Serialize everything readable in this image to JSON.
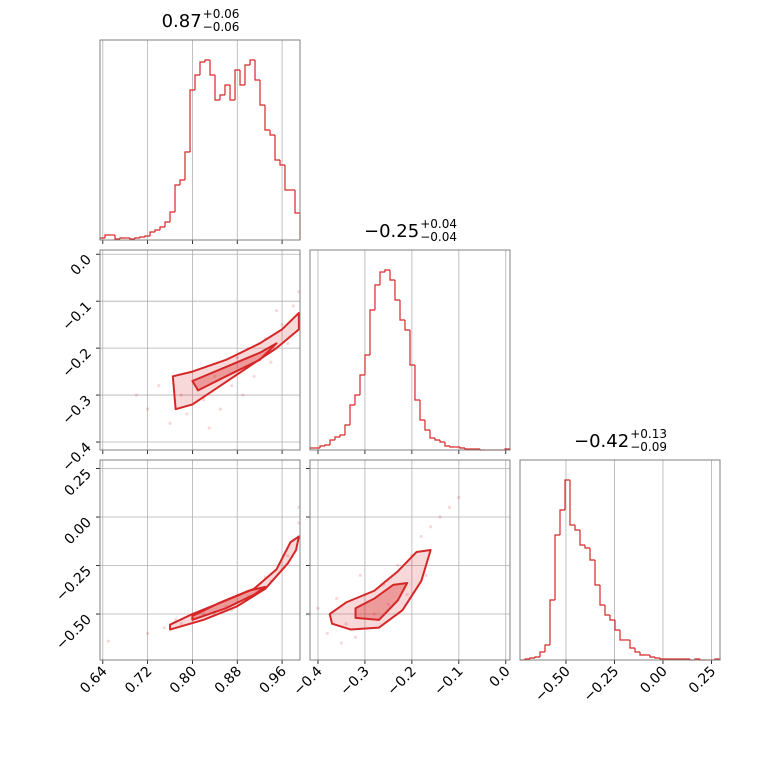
{
  "chart_data": [
    {
      "type": "histogram",
      "title": {
        "value": "0.87",
        "plus": "+0.06",
        "minus": "−0.06"
      },
      "color": "#d62728",
      "bins": [
        0.635,
        0.6439,
        0.6529,
        0.6618,
        0.6707,
        0.6796,
        0.6886,
        0.6975,
        0.7064,
        0.7153,
        0.7243,
        0.7332,
        0.7421,
        0.751,
        0.76,
        0.7689,
        0.7778,
        0.7867,
        0.7957,
        0.8046,
        0.8135,
        0.8224,
        0.8314,
        0.8403,
        0.8492,
        0.8581,
        0.8671,
        0.876,
        0.8849,
        0.8938,
        0.9028,
        0.9117,
        0.9206,
        0.9295,
        0.9385,
        0.9474,
        0.9563,
        0.9652,
        0.9742,
        0.9831,
        0.992
      ],
      "counts": [
        2,
        5,
        5,
        1,
        2,
        2,
        1,
        2,
        3,
        4,
        8,
        10,
        13,
        18,
        28,
        55,
        60,
        88,
        150,
        165,
        178,
        180,
        165,
        140,
        145,
        155,
        140,
        170,
        155,
        175,
        180,
        160,
        135,
        110,
        105,
        80,
        75,
        50,
        50,
        27
      ],
      "xlim": [
        0.635,
        0.992
      ],
      "ylim": [
        0,
        200
      ],
      "xticks": [
        0.64,
        0.72,
        0.8,
        0.88,
        0.96
      ],
      "grid": true
    },
    {
      "type": "contour",
      "color": "#d62728",
      "x": [
        0.7,
        0.74,
        0.76,
        0.78,
        0.79,
        0.82,
        0.84,
        0.85,
        0.87,
        0.88,
        0.9,
        0.91,
        0.93,
        0.94,
        0.96,
        0.97,
        0.98,
        0.99,
        0.83,
        0.89,
        0.72,
        0.95
      ],
      "y": [
        -0.3,
        -0.28,
        -0.36,
        -0.3,
        -0.34,
        -0.31,
        -0.26,
        -0.33,
        -0.28,
        -0.22,
        -0.2,
        -0.26,
        -0.18,
        -0.23,
        -0.15,
        -0.19,
        -0.11,
        -0.08,
        -0.37,
        -0.3,
        -0.33,
        -0.12
      ],
      "contours": [
        {
          "x": [
            0.765,
            0.8,
            0.86,
            0.92,
            0.96,
            0.99,
            0.99,
            0.95,
            0.9,
            0.85,
            0.8,
            0.77
          ],
          "y": [
            -0.26,
            -0.25,
            -0.225,
            -0.19,
            -0.16,
            -0.125,
            -0.16,
            -0.2,
            -0.24,
            -0.28,
            -0.32,
            -0.33
          ]
        },
        {
          "x": [
            0.8,
            0.86,
            0.92,
            0.95,
            0.92,
            0.86,
            0.81
          ],
          "y": [
            -0.27,
            -0.24,
            -0.21,
            -0.19,
            -0.225,
            -0.26,
            -0.29
          ]
        }
      ],
      "xlim": [
        0.635,
        0.992
      ],
      "ylim": [
        -0.417,
        0.009
      ],
      "xticks": [
        0.64,
        0.72,
        0.8,
        0.88,
        0.96
      ],
      "yticks": [
        {
          "value": 0,
          "label": "0.0"
        },
        {
          "value": -0.1,
          "label": "−0.1"
        },
        {
          "value": -0.2,
          "label": "−0.2"
        },
        {
          "value": -0.3,
          "label": "−0.3"
        },
        {
          "value": -0.4,
          "label": "−0.4"
        }
      ],
      "grid": true
    },
    {
      "type": "histogram",
      "title": {
        "value": "−0.25",
        "plus": "+0.04",
        "minus": "−0.04"
      },
      "color": "#d62728",
      "bins": [
        -0.417,
        -0.4064,
        -0.3957,
        -0.3851,
        -0.3744,
        -0.3638,
        -0.3531,
        -0.3425,
        -0.3318,
        -0.3212,
        -0.3105,
        -0.2999,
        -0.2892,
        -0.2786,
        -0.2679,
        -0.2573,
        -0.2466,
        -0.236,
        -0.2253,
        -0.2147,
        -0.204,
        -0.1934,
        -0.1827,
        -0.1721,
        -0.1614,
        -0.1508,
        -0.1401,
        -0.1295,
        -0.1188,
        -0.1082,
        -0.0975,
        -0.0869,
        -0.0762,
        -0.0656,
        -0.0549,
        -0.0443,
        -0.0336,
        -0.023,
        -0.0123,
        -0.0017,
        0.009
      ],
      "counts": [
        2,
        2,
        4,
        5,
        10,
        13,
        15,
        25,
        45,
        55,
        75,
        95,
        140,
        165,
        178,
        180,
        170,
        150,
        130,
        120,
        85,
        50,
        30,
        20,
        12,
        10,
        8,
        4,
        3,
        3,
        2,
        1,
        1,
        1,
        0,
        0,
        0,
        0,
        0,
        1
      ],
      "xlim": [
        -0.417,
        0.009
      ],
      "ylim": [
        0,
        200
      ],
      "xticks": [
        -0.4,
        -0.3,
        -0.2,
        -0.1,
        0
      ],
      "grid": true
    },
    {
      "type": "contour",
      "color": "#d62728",
      "x": [
        0.72,
        0.75,
        0.78,
        0.8,
        0.82,
        0.84,
        0.86,
        0.88,
        0.9,
        0.92,
        0.94,
        0.96,
        0.97,
        0.98,
        0.99,
        0.99,
        0.65,
        0.77,
        0.87,
        0.93
      ],
      "y": [
        -0.6,
        -0.57,
        -0.55,
        -0.52,
        -0.5,
        -0.49,
        -0.46,
        -0.44,
        -0.41,
        -0.38,
        -0.33,
        -0.27,
        -0.2,
        -0.12,
        -0.03,
        0.05,
        -0.64,
        -0.53,
        -0.48,
        -0.31
      ],
      "contours": [
        {
          "x": [
            0.76,
            0.82,
            0.88,
            0.93,
            0.97,
            0.985,
            0.99,
            0.975,
            0.95,
            0.91,
            0.86,
            0.8,
            0.76
          ],
          "y": [
            -0.58,
            -0.53,
            -0.46,
            -0.37,
            -0.24,
            -0.17,
            -0.1,
            -0.13,
            -0.27,
            -0.37,
            -0.43,
            -0.5,
            -0.555
          ]
        },
        {
          "x": [
            0.8,
            0.86,
            0.91,
            0.93,
            0.9,
            0.85,
            0.8
          ],
          "y": [
            -0.53,
            -0.47,
            -0.4,
            -0.36,
            -0.38,
            -0.44,
            -0.51
          ]
        }
      ],
      "xlim": [
        0.635,
        0.992
      ],
      "ylim": [
        -0.737,
        0.294
      ],
      "xticks": [
        {
          "value": 0.64,
          "label": "0.64"
        },
        {
          "value": 0.72,
          "label": "0.72"
        },
        {
          "value": 0.8,
          "label": "0.80"
        },
        {
          "value": 0.88,
          "label": "0.88"
        },
        {
          "value": 0.96,
          "label": "0.96"
        }
      ],
      "yticks": [
        {
          "value": 0.25,
          "label": "0.25"
        },
        {
          "value": 0,
          "label": "0.00"
        },
        {
          "value": -0.25,
          "label": "−0.25"
        },
        {
          "value": -0.5,
          "label": "−0.50"
        }
      ],
      "grid": true
    },
    {
      "type": "contour",
      "color": "#d62728",
      "x": [
        -0.4,
        -0.38,
        -0.36,
        -0.34,
        -0.32,
        -0.3,
        -0.28,
        -0.26,
        -0.25,
        -0.23,
        -0.21,
        -0.2,
        -0.18,
        -0.16,
        -0.14,
        -0.12,
        -0.1,
        -0.31,
        -0.35,
        -0.17
      ],
      "y": [
        -0.47,
        -0.6,
        -0.42,
        -0.55,
        -0.62,
        -0.4,
        -0.5,
        -0.35,
        -0.45,
        -0.25,
        -0.4,
        -0.2,
        -0.1,
        -0.05,
        0.0,
        0.05,
        0.1,
        -0.3,
        -0.65,
        -0.3
      ],
      "contours": [
        {
          "x": [
            -0.37,
            -0.33,
            -0.27,
            -0.22,
            -0.18,
            -0.16,
            -0.19,
            -0.23,
            -0.28,
            -0.34,
            -0.375
          ],
          "y": [
            -0.55,
            -0.58,
            -0.57,
            -0.48,
            -0.33,
            -0.17,
            -0.18,
            -0.28,
            -0.38,
            -0.44,
            -0.5
          ]
        },
        {
          "x": [
            -0.32,
            -0.27,
            -0.23,
            -0.21,
            -0.24,
            -0.28,
            -0.32
          ],
          "y": [
            -0.52,
            -0.53,
            -0.43,
            -0.34,
            -0.35,
            -0.42,
            -0.47
          ]
        }
      ],
      "xlim": [
        -0.417,
        0.009
      ],
      "ylim": [
        -0.737,
        0.294
      ],
      "xticks": [
        {
          "value": -0.4,
          "label": "−0.4"
        },
        {
          "value": -0.3,
          "label": "−0.3"
        },
        {
          "value": -0.2,
          "label": "−0.2"
        },
        {
          "value": -0.1,
          "label": "−0.1"
        },
        {
          "value": 0,
          "label": "0.0"
        }
      ],
      "yticks": [
        0.25,
        0,
        -0.25,
        -0.5
      ],
      "grid": true
    },
    {
      "type": "histogram",
      "title": {
        "value": "−0.42",
        "plus": "+0.13",
        "minus": "−0.09"
      },
      "color": "#d62728",
      "bins": [
        -0.737,
        -0.7112,
        -0.6855,
        -0.6597,
        -0.6339,
        -0.6081,
        -0.5824,
        -0.5566,
        -0.5308,
        -0.505,
        -0.4793,
        -0.4535,
        -0.4277,
        -0.4019,
        -0.3762,
        -0.3504,
        -0.3246,
        -0.2988,
        -0.2731,
        -0.2473,
        -0.2215,
        -0.1957,
        -0.17,
        -0.1442,
        -0.1184,
        -0.0926,
        -0.0669,
        -0.0411,
        -0.0153,
        0.0105,
        0.0362,
        0.062,
        0.0878,
        0.1136,
        0.1393,
        0.1651,
        0.1909,
        0.2167,
        0.2424,
        0.2682,
        0.294
      ],
      "counts": [
        0,
        1,
        2,
        3,
        8,
        15,
        60,
        125,
        150,
        180,
        135,
        130,
        115,
        112,
        100,
        75,
        55,
        45,
        40,
        30,
        20,
        20,
        12,
        8,
        5,
        5,
        3,
        2,
        1,
        1,
        1,
        1,
        1,
        1,
        0,
        1,
        0,
        0,
        0,
        1
      ],
      "xlim": [
        -0.737,
        0.294
      ],
      "ylim": [
        0,
        200
      ],
      "xticks": [
        {
          "value": -0.5,
          "label": "−0.50"
        },
        {
          "value": -0.25,
          "label": "−0.25"
        },
        {
          "value": 0,
          "label": "0.00"
        },
        {
          "value": 0.25,
          "label": "0.25"
        }
      ],
      "grid": true
    }
  ]
}
